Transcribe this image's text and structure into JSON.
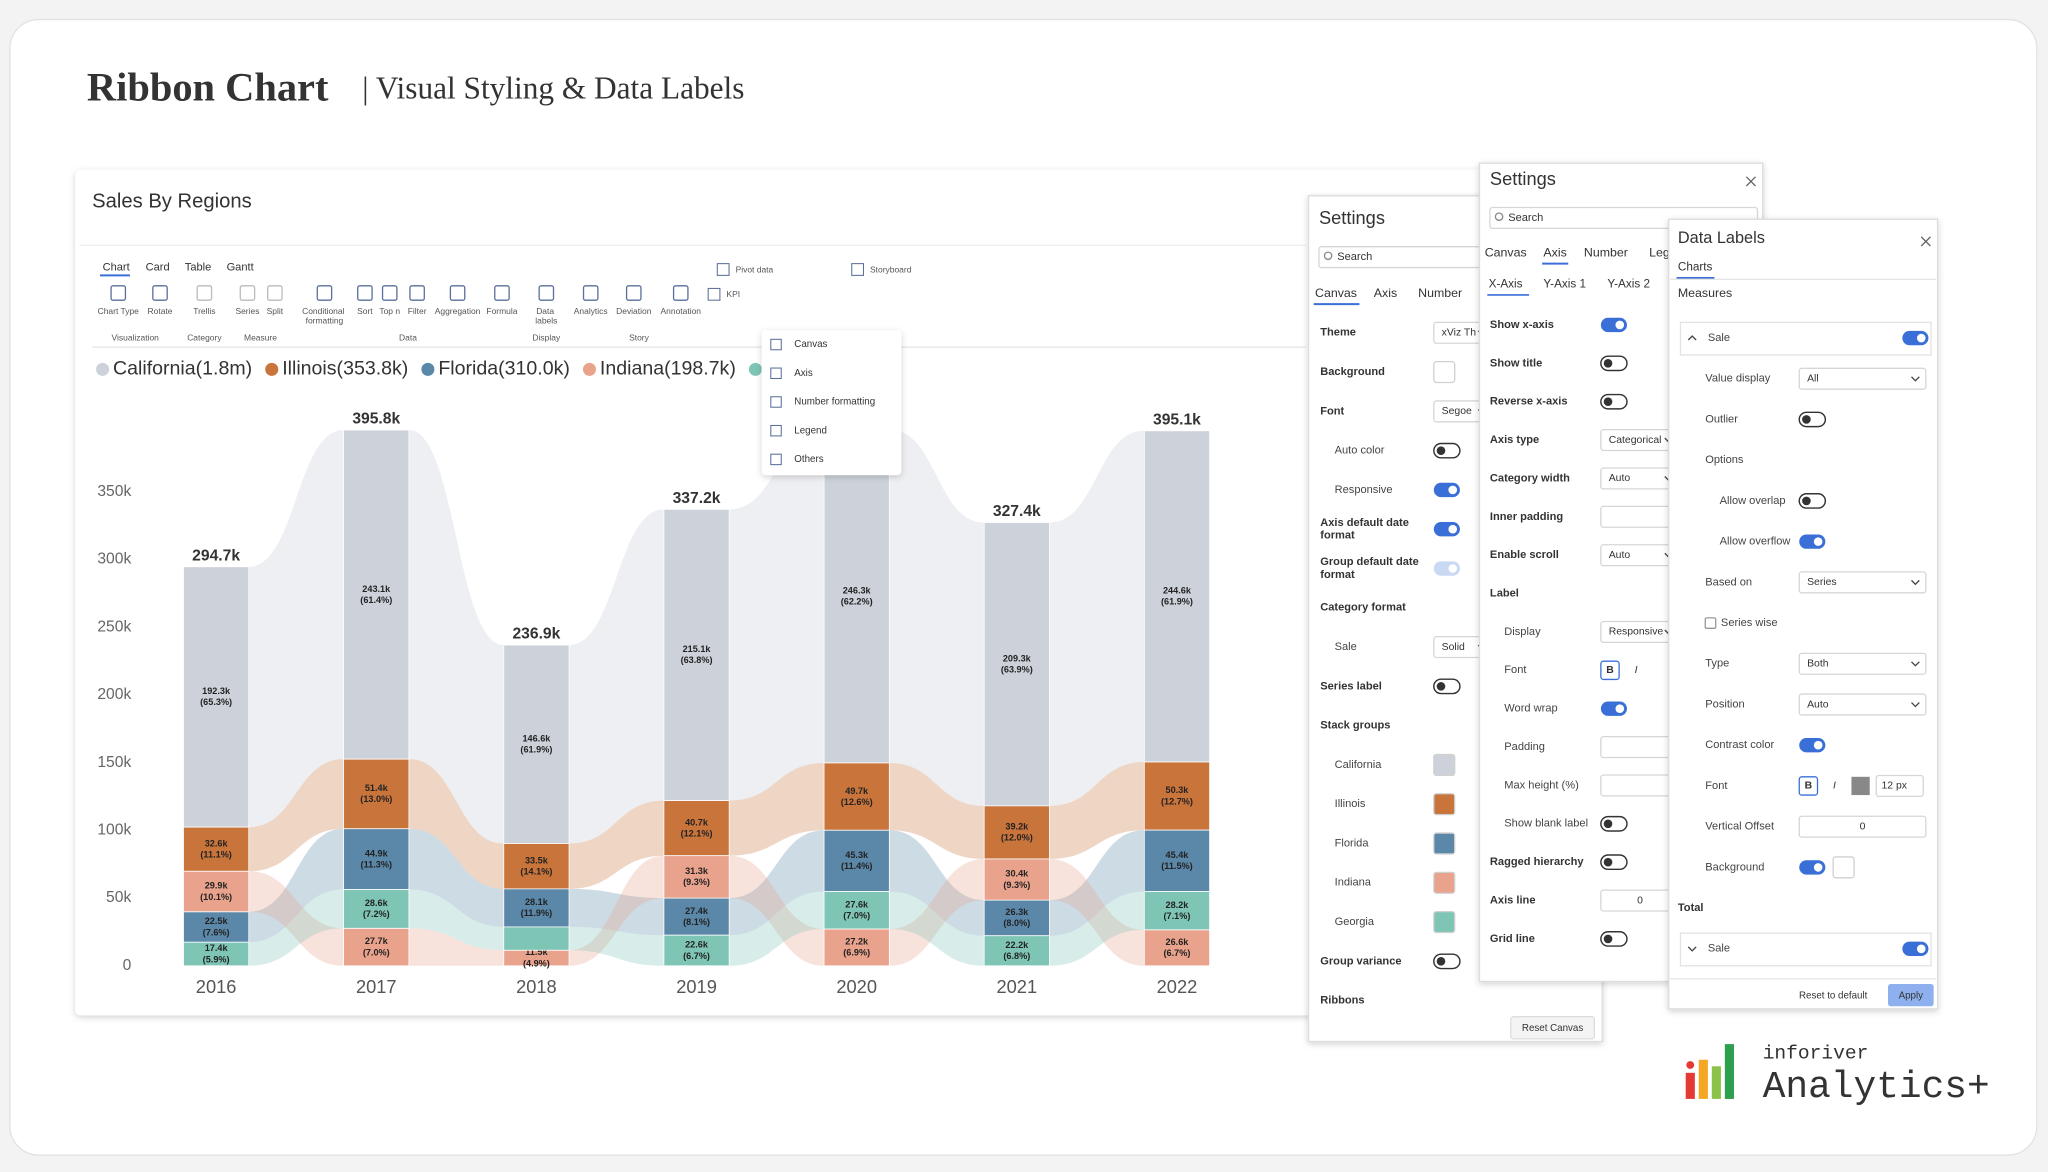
{
  "header": {
    "title": "Ribbon Chart",
    "subtitle": "| Visual Styling & Data Labels"
  },
  "report": {
    "tabs": [
      "Chart",
      "Card",
      "Table",
      "Gantt"
    ],
    "toolbar": [
      "Chart Type",
      "Rotate",
      "Trellis",
      "Series",
      "Split",
      "Conditional formatting",
      "Sort",
      "Top n",
      "Filter",
      "Aggregation",
      "Formula",
      "Data labels",
      "Analytics",
      "Deviation",
      "Annotation"
    ],
    "groups": [
      "Visualization",
      "Category",
      "Measure",
      "Data",
      "Display",
      "Story"
    ],
    "extras": [
      "Pivot data",
      "Storyboard",
      "KPI"
    ]
  },
  "chart_data": {
    "type": "ribbon",
    "title": "Sales By Regions",
    "categories": [
      "2016",
      "2017",
      "2018",
      "2019",
      "2020",
      "2021",
      "2022"
    ],
    "series": [
      {
        "name": "California",
        "legend": "California(1.8m)",
        "color": "#cdd2da",
        "values": [
          192.3,
          243.1,
          146.6,
          215.1,
          246.3,
          209.3,
          244.6
        ],
        "value_labels": [
          "192.3k",
          "243.1k",
          "146.6k",
          "215.1k",
          "246.3k",
          "209.3k",
          "244.6k"
        ],
        "share_labels": [
          "(65.3%)",
          "(61.4%)",
          "(61.9%)",
          "(63.8%)",
          "(62.2%)",
          "(63.9%)",
          "(61.9%)"
        ]
      },
      {
        "name": "Illinois",
        "legend": "Illinois(353.8k)",
        "color": "#c8743b",
        "values": [
          32.6,
          51.4,
          33.5,
          40.7,
          49.7,
          39.2,
          50.3
        ],
        "value_labels": [
          "32.6k",
          "51.4k",
          "33.5k",
          "40.7k",
          "49.7k",
          "39.2k",
          "50.3k"
        ],
        "share_labels": [
          "(11.1%)",
          "(13.0%)",
          "(14.1%)",
          "(12.1%)",
          "(12.6%)",
          "(12.0%)",
          "(12.7%)"
        ]
      },
      {
        "name": "Florida",
        "legend": "Florida(310.0k)",
        "color": "#5b87a8",
        "values": [
          22.5,
          44.9,
          28.1,
          27.4,
          45.3,
          26.3,
          45.4
        ],
        "value_labels": [
          "22.5k",
          "44.9k",
          "28.1k",
          "27.4k",
          "45.3k",
          "26.3k",
          "45.4k"
        ],
        "share_labels": [
          "(7.6%)",
          "(11.3%)",
          "(11.9%)",
          "(8.1%)",
          "(11.4%)",
          "(8.0%)",
          "(11.5%)"
        ]
      },
      {
        "name": "Indiana",
        "legend": "Indiana(198.7k)",
        "color": "#e9a28c",
        "values": [
          29.9,
          27.7,
          11.5,
          31.3,
          27.2,
          30.4,
          26.6
        ],
        "value_labels": [
          "29.9k",
          "27.7k",
          "11.5k",
          "31.3k",
          "27.2k",
          "30.4k",
          "26.6k"
        ],
        "share_labels": [
          "(10.1%)",
          "(7.0%)",
          "(4.9%)",
          "(9.3%)",
          "(6.9%)",
          "(9.3%)",
          "(6.7%)"
        ]
      },
      {
        "name": "Georgia",
        "legend": null,
        "color": "#7ec5b5",
        "values": [
          17.4,
          28.6,
          17.2,
          22.6,
          27.6,
          22.2,
          28.2
        ],
        "value_labels": [
          "17.4k",
          "28.6k",
          null,
          "22.6k",
          "27.6k",
          "22.2k",
          "28.2k"
        ],
        "share_labels": [
          "(5.9%)",
          "(7.2%)",
          null,
          "(6.7%)",
          "(7.0%)",
          "(6.8%)",
          "(7.1%)"
        ]
      }
    ],
    "total_labels": [
      "294.7k",
      "395.8k",
      "236.9k",
      "337.2k",
      null,
      "327.4k",
      "395.1k"
    ],
    "ylim": [
      0,
      400
    ],
    "yticks": [
      0,
      {
        "value": 50,
        "label": "50k"
      },
      {
        "value": 100,
        "label": "100k"
      },
      {
        "value": 150,
        "label": "150k"
      },
      {
        "value": 200,
        "label": "200k"
      },
      {
        "value": 250,
        "label": "250k"
      },
      {
        "value": 300,
        "label": "300k"
      },
      {
        "value": 350,
        "label": "350k"
      }
    ]
  },
  "menu": [
    "Canvas",
    "Axis",
    "Number formatting",
    "Legend",
    "Others"
  ],
  "canvas_panel": {
    "title": "Settings",
    "search": "Search",
    "tabs": [
      "Canvas",
      "Axis",
      "Number"
    ],
    "rows": [
      {
        "label": "Theme",
        "select": "xViz Th"
      },
      {
        "label": "Background",
        "swatch": "#ffffff"
      },
      {
        "label": "Font",
        "select": "Segoe"
      },
      {
        "label": "Auto color",
        "sub": true,
        "toggle": false
      },
      {
        "label": "Responsive",
        "sub": true,
        "toggle": true
      },
      {
        "label": "Axis default date format",
        "toggle": true
      },
      {
        "label": "Group default date format",
        "toggle": true,
        "disabled": true
      },
      {
        "label": "Category format"
      },
      {
        "label": "Sale",
        "sub": true,
        "select": "Solid"
      },
      {
        "label": "Series label",
        "toggle": false
      },
      {
        "label": "Stack groups"
      }
    ],
    "rows_after": [
      {
        "label": "Group variance",
        "toggle": false
      },
      {
        "label": "Ribbons"
      }
    ],
    "button": "Reset Canvas"
  },
  "axis_panel": {
    "title": "Settings",
    "search": "Search",
    "tabs": [
      "Canvas",
      "Axis",
      "Number",
      "Leg"
    ],
    "subtabs": [
      "X-Axis",
      "Y-Axis 1",
      "Y-Axis 2"
    ],
    "rows": [
      {
        "label": "Show x-axis",
        "toggle": true
      },
      {
        "label": "Show title",
        "toggle": false
      },
      {
        "label": "Reverse x-axis",
        "toggle": false
      },
      {
        "label": "Axis type",
        "select": "Categorical"
      },
      {
        "label": "Category width",
        "select": "Auto"
      },
      {
        "label": "Inner padding",
        "input": true
      },
      {
        "label": "Enable scroll",
        "select": "Auto"
      },
      {
        "label": "Label"
      },
      {
        "label": "Display",
        "sub": true,
        "select": "Responsive"
      },
      {
        "label": "Font",
        "sub": true,
        "font": [
          "B",
          "I"
        ]
      },
      {
        "label": "Word wrap",
        "sub": true,
        "toggle": true
      },
      {
        "label": "Padding",
        "sub": true,
        "input": true
      },
      {
        "label": "Max height (%)",
        "sub": true,
        "input": true
      },
      {
        "label": "Show blank label",
        "sub": true,
        "toggle": false
      },
      {
        "label": "Ragged hierarchy",
        "toggle": false
      },
      {
        "label": "Axis line",
        "input": "0"
      },
      {
        "label": "Grid line",
        "toggle": false
      }
    ]
  },
  "labels_panel": {
    "title": "Data Labels",
    "tab": "Charts",
    "section": "Measures",
    "rows": [
      {
        "label": "Sale",
        "collapse": true,
        "toggle": true
      },
      {
        "label": "Value display",
        "sub": true,
        "select": "All"
      },
      {
        "label": "Outlier",
        "sub": true,
        "toggle": false
      },
      {
        "label": "Options",
        "sub": true
      },
      {
        "label": "Allow overlap",
        "deep": true,
        "toggle": false
      },
      {
        "label": "Allow overflow",
        "deep": true,
        "toggle": true
      },
      {
        "label": "Based on",
        "sub": true,
        "select": "Series"
      },
      {
        "label": "Series wise",
        "sub": true,
        "check": false
      },
      {
        "label": "Type",
        "sub": true,
        "select": "Both"
      },
      {
        "label": "Position",
        "sub": true,
        "select": "Auto"
      },
      {
        "label": "Contrast color",
        "sub": true,
        "toggle": true
      },
      {
        "label": "Font",
        "sub": true,
        "font": [
          "B",
          "I"
        ],
        "size": "12 px"
      },
      {
        "label": "Vertical Offset",
        "sub": true,
        "input": "0"
      },
      {
        "label": "Background",
        "sub": true,
        "toggle": true,
        "swatch": "#ffffff"
      },
      {
        "label": "Total"
      },
      {
        "label": "Sale",
        "collapse": true,
        "toggle": true
      }
    ],
    "buttons": [
      "Reset to default",
      "Apply"
    ]
  },
  "brand": {
    "name": "inforiver",
    "product": "Analytics+"
  }
}
